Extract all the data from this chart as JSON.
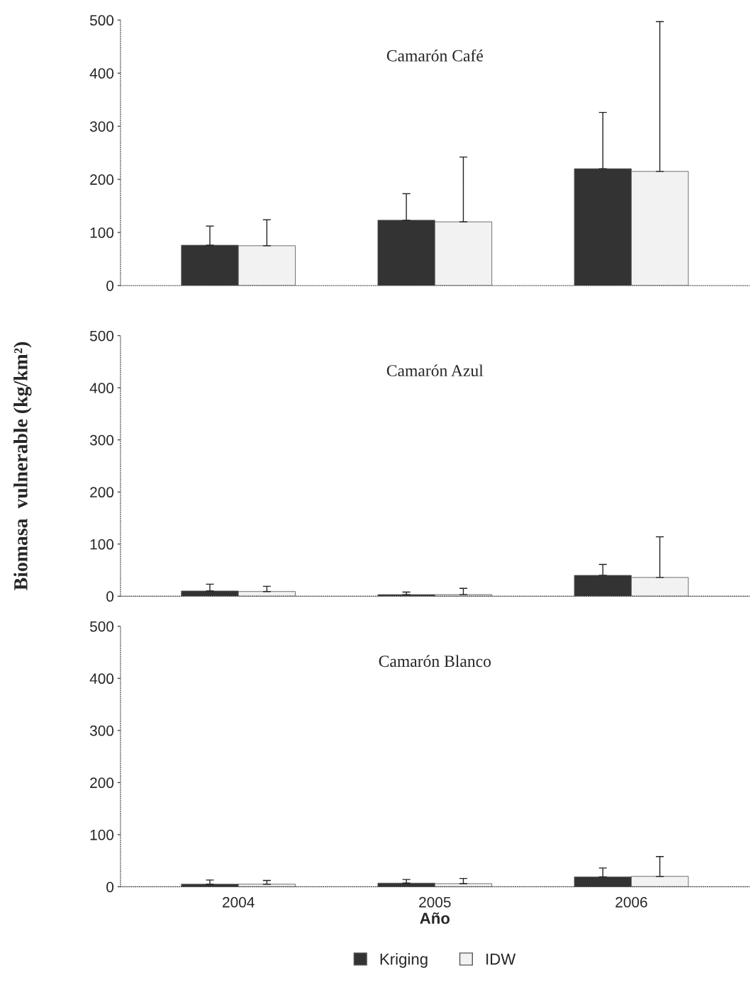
{
  "chart_data": [
    {
      "type": "bar",
      "title": "Camarón Café",
      "categories": [
        "2004",
        "2005",
        "2006"
      ],
      "ylim": [
        0,
        500
      ],
      "yticks": [
        0,
        100,
        200,
        300,
        400,
        500
      ],
      "tick_labels": "y",
      "grid": false,
      "legend": false,
      "series": [
        {
          "color": "#333333",
          "values": [
            76,
            123,
            220
          ],
          "errors": [
            [
              76,
              112
            ],
            [
              123,
              173
            ],
            [
              220,
              326
            ]
          ]
        },
        {
          "color": "#f2f2f2",
          "values": [
            75,
            120,
            215
          ],
          "errors": [
            [
              75,
              124
            ],
            [
              120,
              242
            ],
            [
              215,
              497
            ]
          ]
        }
      ]
    },
    {
      "type": "bar",
      "title": "Camarón Azul",
      "ylabel": "Biomasa  vulnerable (kg/km²)",
      "categories": [
        "2004",
        "2005",
        "2006"
      ],
      "ylim": [
        0,
        500
      ],
      "yticks": [
        0,
        100,
        200,
        300,
        400,
        500
      ],
      "tick_labels": "y",
      "grid": false,
      "legend": false,
      "series": [
        {
          "color": "#333333",
          "values": [
            10,
            3,
            40
          ],
          "errors": [
            [
              10,
              23
            ],
            [
              3,
              8
            ],
            [
              40,
              61
            ]
          ]
        },
        {
          "color": "#f2f2f2",
          "values": [
            9,
            3,
            36
          ],
          "errors": [
            [
              9,
              19
            ],
            [
              3,
              15
            ],
            [
              36,
              114
            ]
          ]
        }
      ]
    },
    {
      "type": "bar",
      "title": "Camarón Blanco",
      "xlabel": "Año",
      "categories": [
        "2004",
        "2005",
        "2006"
      ],
      "ylim": [
        0,
        500
      ],
      "yticks": [
        0,
        100,
        200,
        300,
        400,
        500
      ],
      "grid": false,
      "legend": "bottom",
      "series": [
        {
          "name": "Kriging",
          "color": "#333333",
          "values": [
            5,
            7,
            19
          ],
          "errors": [
            [
              5,
              13
            ],
            [
              7,
              14
            ],
            [
              19,
              36
            ]
          ]
        },
        {
          "name": "IDW",
          "color": "#f2f2f2",
          "values": [
            5,
            6,
            20
          ],
          "errors": [
            [
              5,
              12
            ],
            [
              6,
              16
            ],
            [
              20,
              58
            ]
          ]
        }
      ]
    }
  ]
}
